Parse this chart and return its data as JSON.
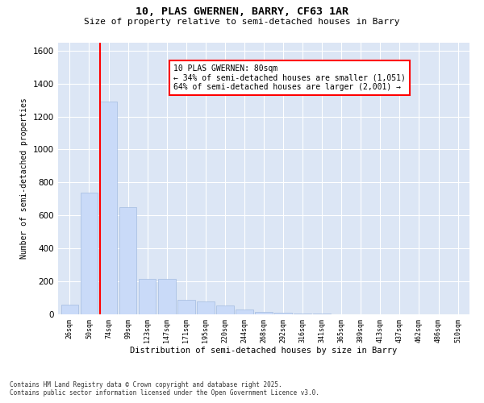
{
  "title": "10, PLAS GWERNEN, BARRY, CF63 1AR",
  "subtitle": "Size of property relative to semi-detached houses in Barry",
  "xlabel": "Distribution of semi-detached houses by size in Barry",
  "ylabel": "Number of semi-detached properties",
  "categories": [
    "26sqm",
    "50sqm",
    "74sqm",
    "99sqm",
    "123sqm",
    "147sqm",
    "171sqm",
    "195sqm",
    "220sqm",
    "244sqm",
    "268sqm",
    "292sqm",
    "316sqm",
    "341sqm",
    "365sqm",
    "389sqm",
    "413sqm",
    "437sqm",
    "462sqm",
    "486sqm",
    "510sqm"
  ],
  "values": [
    60,
    740,
    1290,
    650,
    215,
    215,
    90,
    80,
    55,
    30,
    15,
    10,
    5,
    3,
    2,
    1,
    1,
    0,
    0,
    0,
    0
  ],
  "bar_color": "#c9daf8",
  "bar_edge_color": "#a4bce0",
  "red_line_index": 2,
  "property_name": "10 PLAS GWERNEN: 80sqm",
  "pct_smaller": "34% of semi-detached houses are smaller (1,051)",
  "pct_larger": "64% of semi-detached houses are larger (2,001)",
  "footer_line1": "Contains HM Land Registry data © Crown copyright and database right 2025.",
  "footer_line2": "Contains public sector information licensed under the Open Government Licence v3.0.",
  "ylim": [
    0,
    1650
  ],
  "yticks": [
    0,
    200,
    400,
    600,
    800,
    1000,
    1200,
    1400,
    1600
  ],
  "background_color": "#ffffff",
  "plot_background_color": "#dce6f5"
}
